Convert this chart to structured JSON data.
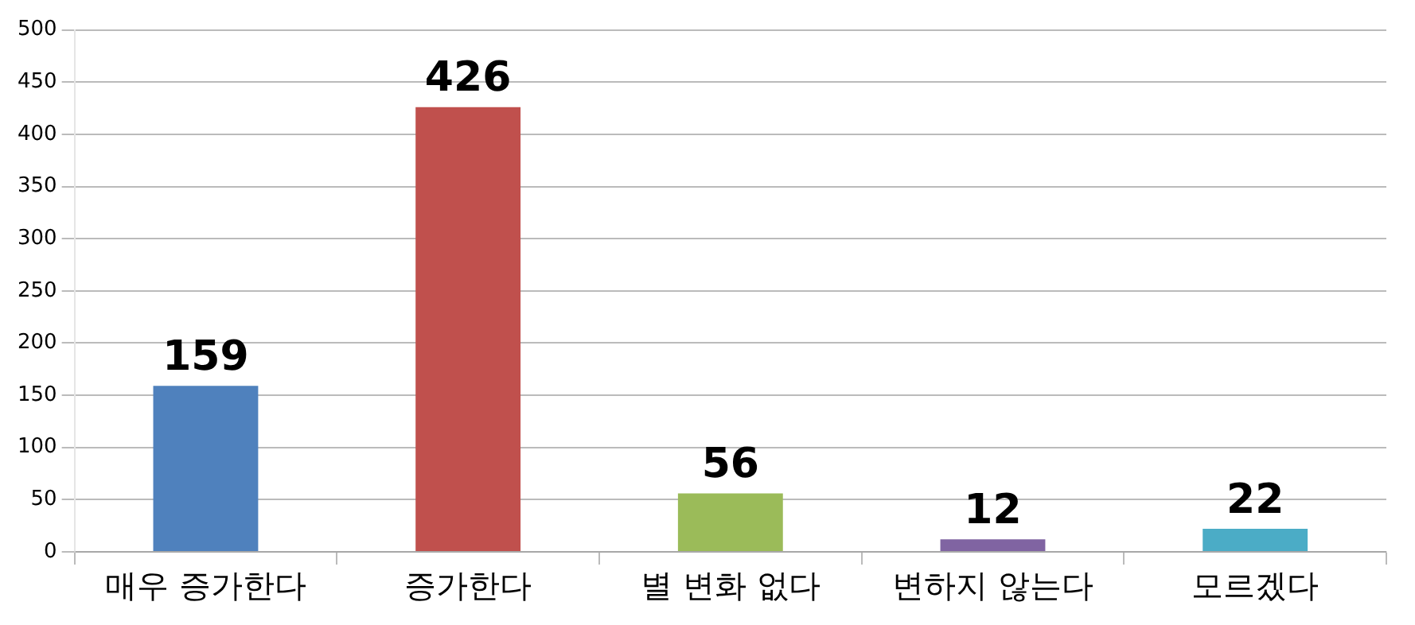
{
  "chart_data": {
    "type": "bar",
    "categories": [
      "매우 증가한다",
      "증가한다",
      "별 변화 없다",
      "변하지 않는다",
      "모르겠다"
    ],
    "values": [
      159,
      426,
      56,
      12,
      22
    ],
    "colors": [
      "#4f81bd",
      "#c0504d",
      "#9bbb59",
      "#8064a2",
      "#4bacc6"
    ],
    "ylim": [
      0,
      500
    ],
    "yticks": [
      0,
      50,
      100,
      150,
      200,
      250,
      300,
      350,
      400,
      450,
      500
    ],
    "grid": "y",
    "legend": false,
    "data_labels": true
  }
}
